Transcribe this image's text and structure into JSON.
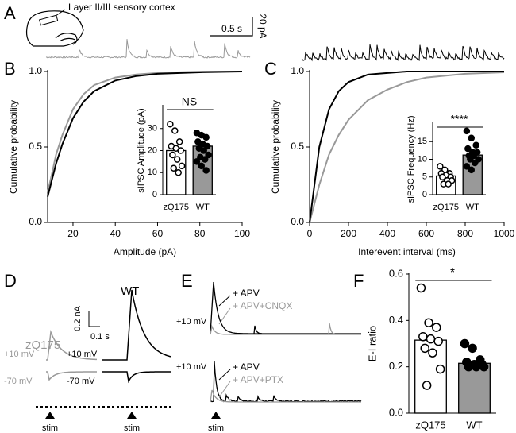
{
  "panels": {
    "A": {
      "letter": "A",
      "label": "Layer II/III sensory cortex",
      "scale_x": "0.5 s",
      "scale_y": "20 pA"
    },
    "B": {
      "letter": "B"
    },
    "C": {
      "letter": "C"
    },
    "D": {
      "letter": "D",
      "zq": "zQ175",
      "wt": "WT",
      "scale_y": "0.2 nA",
      "scale_x": "0.1 s",
      "v1_gray": "+10 mV",
      "v2_gray": "-70 mV",
      "v1_black": "+10 mV",
      "v2_black": "-70 mV",
      "stim1": "stim",
      "stim2": "stim"
    },
    "E": {
      "letter": "E",
      "top_black": "+ APV",
      "top_gray": "+ APV+CNQX",
      "top_v": "+10 mV",
      "bot_black": "+ APV",
      "bot_gray": "+ APV+PTX",
      "bot_v": "+10 mV",
      "stim": "stim"
    },
    "F": {
      "letter": "F"
    }
  },
  "chart_data": [
    {
      "type": "line",
      "xlabel": "Amplitude (pA)",
      "ylabel": "Cumulative probability",
      "x": [
        8,
        10,
        12,
        15,
        20,
        25,
        30,
        40,
        50,
        60,
        80,
        100
      ],
      "xlim": [
        8,
        100
      ],
      "xticks": [
        20,
        40,
        60,
        80,
        100
      ],
      "ylim": [
        0,
        1
      ],
      "yticks": [
        {
          "value": 0,
          "label": "0.0"
        },
        {
          "value": 0.5,
          "label": "0.5"
        },
        {
          "value": 1,
          "label": "1.0"
        }
      ],
      "series": [
        {
          "color": "#999999",
          "values": [
            0.2,
            0.32,
            0.45,
            0.58,
            0.75,
            0.85,
            0.91,
            0.96,
            0.98,
            0.99,
            1,
            1
          ]
        },
        {
          "color": "#000000",
          "values": [
            0.17,
            0.28,
            0.39,
            0.52,
            0.69,
            0.8,
            0.87,
            0.94,
            0.97,
            0.985,
            0.995,
            1
          ]
        }
      ]
    },
    {
      "type": "bar",
      "ylabel": "sIPSC Amplitude (pA)",
      "categories": [
        "zQ175",
        "WT"
      ],
      "values": [
        20,
        22
      ],
      "colors": [
        "#ffffff",
        "#999999"
      ],
      "point_fills": [
        "#ffffff",
        "#000000"
      ],
      "points": [
        [
          32,
          29,
          24,
          22,
          21,
          20,
          18,
          16,
          13,
          12,
          10
        ],
        [
          28,
          27,
          26,
          24,
          23,
          22,
          21,
          20,
          18,
          17,
          16,
          15,
          13,
          11
        ]
      ],
      "ylim": [
        0,
        40
      ],
      "yticks": [
        0,
        10,
        20,
        30
      ],
      "annotation": "NS"
    },
    {
      "type": "line",
      "xlabel": "Interevent interval (ms)",
      "ylabel": "Cumulative probability",
      "x": [
        0,
        50,
        100,
        150,
        200,
        300,
        400,
        500,
        600,
        800,
        1000
      ],
      "xlim": [
        0,
        1000
      ],
      "xticks": [
        0,
        200,
        400,
        600,
        800,
        1000
      ],
      "ylim": [
        0,
        1
      ],
      "yticks": [
        {
          "value": 0,
          "label": "0.0"
        },
        {
          "value": 0.5,
          "label": "0.5"
        },
        {
          "value": 1,
          "label": "1.0"
        }
      ],
      "series": [
        {
          "color": "#999999",
          "values": [
            0,
            0.25,
            0.45,
            0.58,
            0.68,
            0.81,
            0.88,
            0.93,
            0.96,
            0.985,
            0.995
          ]
        },
        {
          "color": "#000000",
          "values": [
            0,
            0.5,
            0.75,
            0.87,
            0.93,
            0.98,
            0.99,
            1,
            1,
            1,
            1
          ]
        }
      ]
    },
    {
      "type": "bar",
      "ylabel": "sIPSC Frequency (Hz)",
      "categories": [
        "zQ175",
        "WT"
      ],
      "values": [
        5.3,
        11.2
      ],
      "colors": [
        "#ffffff",
        "#999999"
      ],
      "point_fills": [
        "#ffffff",
        "#000000"
      ],
      "points": [
        [
          8,
          7,
          6,
          6,
          5.5,
          5,
          5,
          4,
          4,
          3,
          3
        ],
        [
          18,
          16,
          14,
          13,
          12,
          12,
          11,
          11,
          10,
          10,
          9,
          8,
          7
        ]
      ],
      "ylim": [
        0,
        20
      ],
      "yticks": [
        0,
        5,
        10,
        15
      ],
      "annotation": "****"
    },
    {
      "type": "bar",
      "ylabel": "E-I ratio",
      "categories": [
        "zQ175",
        "WT"
      ],
      "values": [
        0.315,
        0.215
      ],
      "colors": [
        "#ffffff",
        "#999999"
      ],
      "point_fills": [
        "#ffffff",
        "#000000"
      ],
      "points": [
        [
          0.54,
          0.39,
          0.37,
          0.33,
          0.32,
          0.31,
          0.28,
          0.26,
          0.19,
          0.12
        ],
        [
          0.3,
          0.28,
          0.23,
          0.22,
          0.21,
          0.21,
          0.2,
          0.2,
          0.2
        ]
      ],
      "ylim": [
        0,
        0.6
      ],
      "yticks": [
        {
          "value": 0,
          "label": "0.0"
        },
        {
          "value": 0.2,
          "label": "0.2"
        },
        {
          "value": 0.4,
          "label": "0.4"
        },
        {
          "value": 0.6,
          "label": "0.6"
        }
      ],
      "annotation": "*"
    }
  ]
}
